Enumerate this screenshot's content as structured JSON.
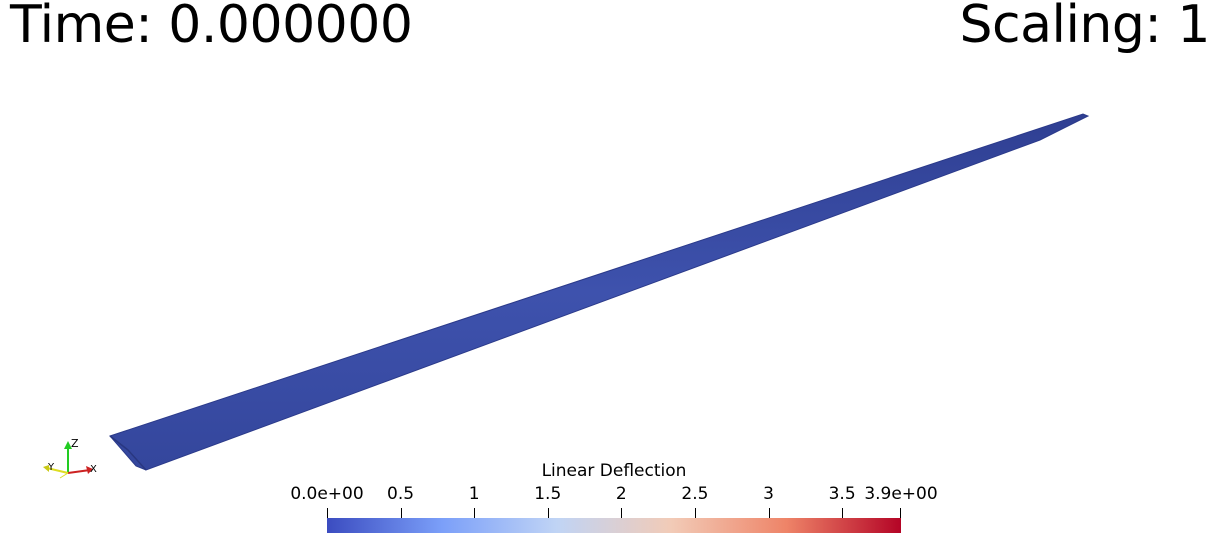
{
  "header": {
    "time_label": "Time: 0.000000",
    "scaling_label": "Scaling: 1"
  },
  "orientation_axes": {
    "z_label": "Z",
    "y_label": "Y",
    "x_label": "X",
    "z_color": "#22cc22",
    "y_color": "#dddd22",
    "x_color": "#cc2222"
  },
  "model": {
    "surface_color": "#3b4ea6",
    "edge_color": "#2b3a8a"
  },
  "colorbar": {
    "title": "Linear Deflection",
    "range": [
      0.0,
      3.9
    ],
    "tick_labels": [
      "0.0e+00",
      "0.5",
      "1",
      "1.5",
      "2",
      "2.5",
      "3",
      "3.5",
      "3.9e+00"
    ],
    "tick_values": [
      0.0,
      0.5,
      1.0,
      1.5,
      2.0,
      2.5,
      3.0,
      3.5,
      3.9
    ],
    "colormap_stops": [
      "#3b4cc0",
      "#7b9ff9",
      "#c0d4f5",
      "#f2cbb7",
      "#ee8468",
      "#b40426"
    ]
  }
}
